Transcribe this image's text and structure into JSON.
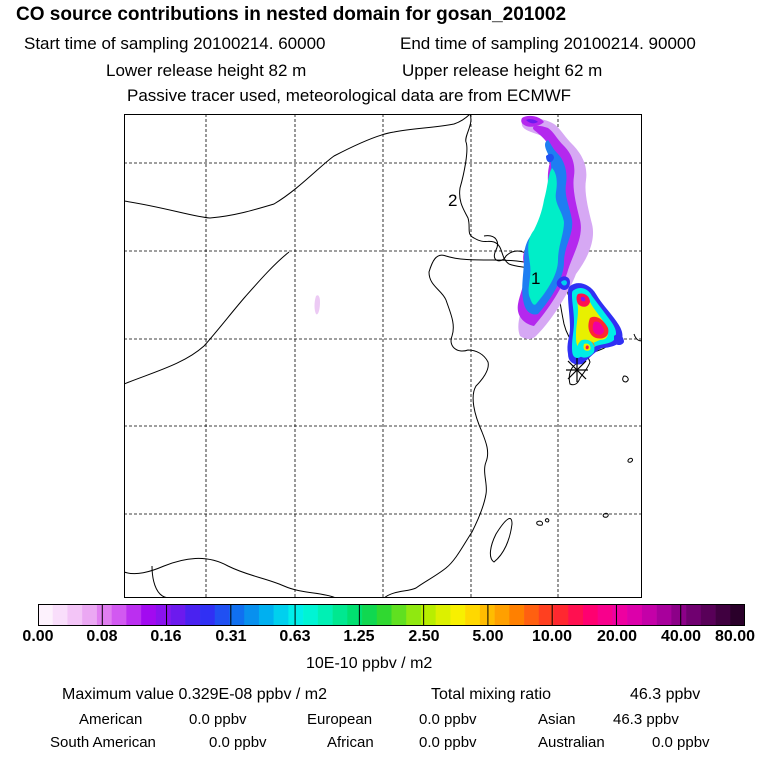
{
  "header": {
    "title": "CO  source contributions in nested domain for gosan_201002",
    "start_label": "Start time of sampling 20100214. 60000",
    "end_label": "End time of sampling 20100214. 90000",
    "lower_label": "Lower release height   82 m",
    "upper_label": "Upper release height   62 m",
    "note": "Passive tracer used, meteorological data are from ECMWF"
  },
  "map": {
    "label_1": "1",
    "label_2": "2",
    "colors": {
      "frame": "#000000",
      "coast": "#000000",
      "grid": "#000000"
    }
  },
  "colorbar": {
    "ticks": [
      "0.00",
      "0.08",
      "0.16",
      "0.31",
      "0.63",
      "1.25",
      "2.50",
      "5.00",
      "10.00",
      "20.00",
      "40.00",
      "80.00"
    ],
    "unit": "10E-10 ppbv / m2",
    "colors": [
      "#fdf2fd",
      "#f9defb",
      "#f3c5f7",
      "#eba8f3",
      "#e07ef0",
      "#d259f1",
      "#bb2ff0",
      "#a20af0",
      "#8a12ee",
      "#6c1aee",
      "#4a22f0",
      "#3030f4",
      "#2050f2",
      "#1070f0",
      "#0890ee",
      "#00b0f0",
      "#00d0ee",
      "#00eeea",
      "#00f4d4",
      "#00f0b4",
      "#00e890",
      "#00e070",
      "#10d850",
      "#30d830",
      "#60e020",
      "#90e810",
      "#b8ee00",
      "#dcf000",
      "#f8f000",
      "#ffd800",
      "#ffbc00",
      "#ffa000",
      "#ff8000",
      "#ff6010",
      "#ff4020",
      "#ff2830",
      "#ff1050",
      "#ff0070",
      "#f8008c",
      "#ee00a0",
      "#dc00aa",
      "#c400a8",
      "#a8009c",
      "#8c0088",
      "#700070",
      "#580058",
      "#400040",
      "#2a002a"
    ]
  },
  "stats": {
    "max_label": "Maximum value  0.329E-08 ppbv / m2",
    "total_label": "Total mixing ratio",
    "total_value": "46.3 ppbv"
  },
  "regions": {
    "american_label": "American",
    "american_value": "0.0 ppbv",
    "european_label": "European",
    "european_value": "0.0 ppbv",
    "asian_label": "Asian",
    "asian_value": "46.3 ppbv",
    "south_american_label": "South American",
    "south_american_value": "0.0 ppbv",
    "african_label": "African",
    "african_value": "0.0 ppbv",
    "australian_label": "Australian",
    "australian_value": "0.0 ppbv"
  }
}
